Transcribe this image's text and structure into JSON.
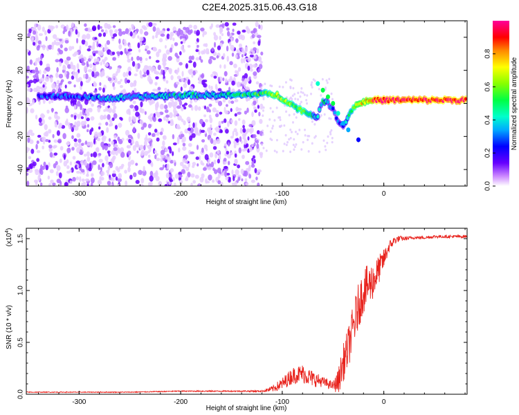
{
  "title": "C2E4.2025.315.06.43.G18",
  "chart_data": [
    {
      "type": "heatmap",
      "name": "spectrogram",
      "xlabel": "Height of straight line (km)",
      "ylabel": "Frequency (Hz)",
      "xlim": [
        -352,
        82
      ],
      "ylim": [
        -50,
        50
      ],
      "xticks": [
        -300,
        -200,
        -100,
        0
      ],
      "yticks": [
        -40,
        -20,
        0,
        20,
        40
      ],
      "colorbar": {
        "label": "Normalized spectral amplitude",
        "range": [
          0,
          1
        ],
        "ticks": [
          0.0,
          0.2,
          0.4,
          0.6,
          0.8
        ]
      },
      "noise_region": {
        "x_from": -352,
        "x_to": -120,
        "freq_from": -50,
        "freq_to": 48
      },
      "signal_track": [
        {
          "x": -340,
          "freq": 5,
          "amp": 0.2
        },
        {
          "x": -300,
          "freq": 4,
          "amp": 0.25
        },
        {
          "x": -270,
          "freq": 3,
          "amp": 0.35
        },
        {
          "x": -240,
          "freq": 4,
          "amp": 0.3
        },
        {
          "x": -200,
          "freq": 5,
          "amp": 0.4
        },
        {
          "x": -170,
          "freq": 5,
          "amp": 0.35
        },
        {
          "x": -140,
          "freq": 5,
          "amp": 0.45
        },
        {
          "x": -120,
          "freq": 6,
          "amp": 0.5
        },
        {
          "x": -105,
          "freq": 5,
          "amp": 0.6
        },
        {
          "x": -95,
          "freq": 1,
          "amp": 0.6
        },
        {
          "x": -85,
          "freq": -3,
          "amp": 0.55
        },
        {
          "x": -75,
          "freq": -6,
          "amp": 0.5
        },
        {
          "x": -65,
          "freq": -8,
          "amp": 0.35
        },
        {
          "x": -60,
          "freq": 2,
          "amp": 0.4
        },
        {
          "x": -55,
          "freq": 0,
          "amp": 0.35
        },
        {
          "x": -50,
          "freq": -4,
          "amp": 0.3
        },
        {
          "x": -45,
          "freq": -10,
          "amp": 0.25
        },
        {
          "x": -40,
          "freq": -14,
          "amp": 0.25
        },
        {
          "x": -30,
          "freq": -2,
          "amp": 0.6
        },
        {
          "x": -20,
          "freq": 1,
          "amp": 0.75
        },
        {
          "x": -10,
          "freq": 2,
          "amp": 0.85
        },
        {
          "x": 0,
          "freq": 2,
          "amp": 0.9
        },
        {
          "x": 20,
          "freq": 2,
          "amp": 0.9
        },
        {
          "x": 40,
          "freq": 2,
          "amp": 0.9
        },
        {
          "x": 60,
          "freq": 2,
          "amp": 0.9
        },
        {
          "x": 82,
          "freq": 2,
          "amp": 0.9
        }
      ]
    },
    {
      "type": "line",
      "name": "snr",
      "xlabel": "Height of straight line (km)",
      "ylabel": "SNR (10 * v/v)",
      "yscale_label": "(x10",
      "yscale_exp": "4",
      "xlim": [
        -352,
        82
      ],
      "ylim": [
        0,
        1.6
      ],
      "xticks": [
        -300,
        -200,
        -100,
        0
      ],
      "yticks": [
        0.0,
        0.5,
        1.0,
        1.5
      ],
      "ytick_labels": [
        "0.0",
        "0.5",
        "1.0",
        "1.5"
      ],
      "series": [
        {
          "name": "SNR",
          "color": "#e8221c",
          "x": [
            -352,
            -300,
            -250,
            -200,
            -150,
            -120,
            -110,
            -100,
            -90,
            -80,
            -70,
            -60,
            -50,
            -45,
            -40,
            -35,
            -30,
            -25,
            -20,
            -15,
            -10,
            -5,
            0,
            5,
            10,
            15,
            20,
            30,
            40,
            50,
            60,
            70,
            82
          ],
          "y": [
            0.02,
            0.02,
            0.02,
            0.03,
            0.03,
            0.03,
            0.05,
            0.1,
            0.18,
            0.2,
            0.15,
            0.12,
            0.08,
            0.12,
            0.3,
            0.45,
            0.65,
            0.85,
            1.0,
            1.05,
            1.1,
            1.2,
            1.3,
            1.42,
            1.48,
            1.5,
            1.5,
            1.51,
            1.51,
            1.52,
            1.52,
            1.52,
            1.52
          ],
          "noise": [
            0.004,
            0.004,
            0.004,
            0.005,
            0.006,
            0.008,
            0.03,
            0.06,
            0.08,
            0.09,
            0.08,
            0.05,
            0.04,
            0.12,
            0.18,
            0.2,
            0.22,
            0.22,
            0.22,
            0.2,
            0.18,
            0.14,
            0.1,
            0.06,
            0.04,
            0.03,
            0.02,
            0.015,
            0.015,
            0.015,
            0.015,
            0.015,
            0.015
          ]
        }
      ]
    }
  ]
}
